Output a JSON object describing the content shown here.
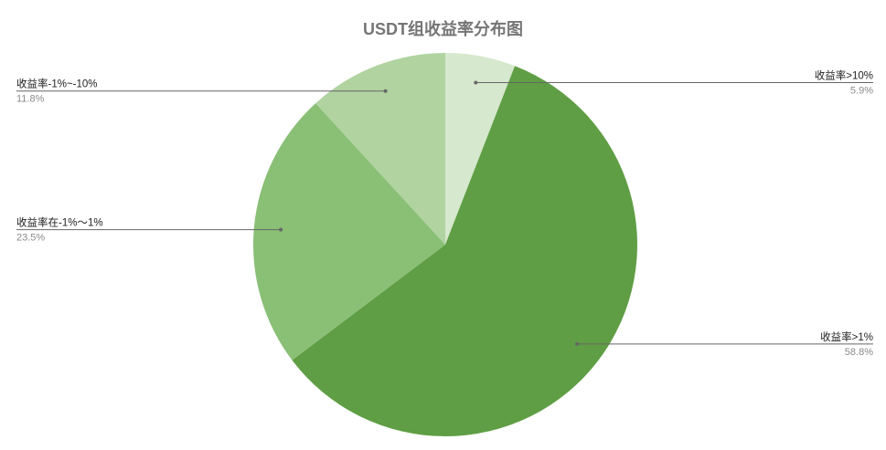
{
  "chart_data": {
    "type": "pie",
    "title": "USDT组收益率分布图",
    "slices": [
      {
        "label": "收益率>10%",
        "value": 5.9,
        "pct_label": "5.9%",
        "color": "#d6e8cd"
      },
      {
        "label": "收益率>1%",
        "value": 58.8,
        "pct_label": "58.8%",
        "color": "#5f9e44"
      },
      {
        "label": "收益率在-1%～1%",
        "value": 23.5,
        "pct_label": "23.5%",
        "color": "#8abf76"
      },
      {
        "label": "收益率-1%~-10%",
        "value": 11.8,
        "pct_label": "11.8%",
        "color": "#b0d3a0"
      }
    ],
    "start_angle": "12 o'clock",
    "direction": "clockwise",
    "legend": "none",
    "label_style": "leader lines",
    "label_side": [
      "right",
      "right",
      "left",
      "left"
    ]
  },
  "colors": {
    "title": "#757575",
    "leader_line": "#666666",
    "label_text": "#222222",
    "percent_text": "#8a8a8a",
    "background": "#ffffff"
  }
}
